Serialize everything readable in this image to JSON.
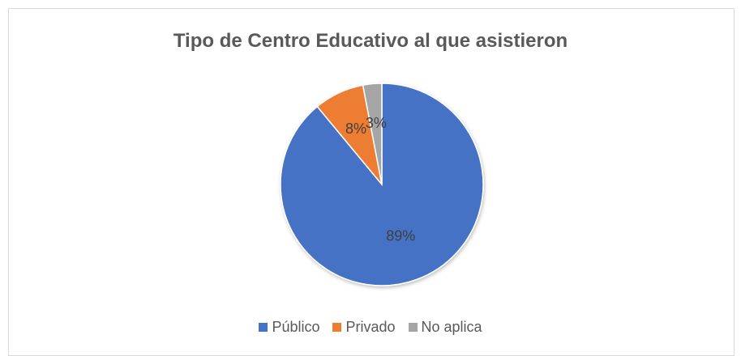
{
  "chart_data": {
    "type": "pie",
    "title": "Tipo de Centro Educativo al que asistieron",
    "categories": [
      "Público",
      "Privado",
      "No aplica"
    ],
    "values": [
      89,
      8,
      3
    ],
    "data_labels": [
      "89%",
      "8%",
      "3%"
    ],
    "colors": [
      "#4472c4",
      "#ed7d31",
      "#a5a5a5"
    ],
    "legend_position": "bottom"
  }
}
